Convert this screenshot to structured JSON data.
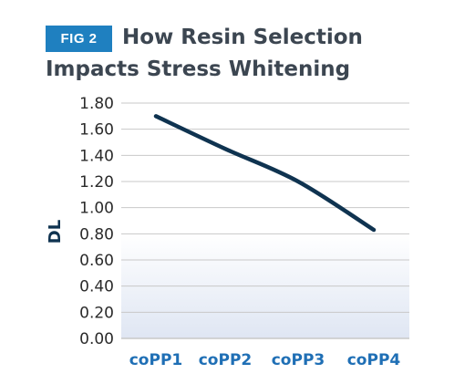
{
  "figure": {
    "badge": "FIG 2",
    "title_line_1": "How Resin Selection",
    "title_line_2": "Impacts Stress Whitening"
  },
  "colors": {
    "badge_bg": "#1f80c0",
    "line": "#0f3350",
    "category_label": "#1f6fb5",
    "gradient_top": "#ffffff",
    "gradient_bottom": "#dfe6f3",
    "grid": "#c8c8c8"
  },
  "chart_data": {
    "type": "line",
    "title": "How Resin Selection Impacts Stress Whitening",
    "xlabel": "",
    "ylabel": "DL",
    "categories": [
      "coPP1",
      "coPP2",
      "coPP3",
      "coPP4"
    ],
    "series": [
      {
        "values": [
          1.7,
          1.45,
          1.2,
          0.83
        ]
      }
    ],
    "ylim": [
      0,
      1.8
    ],
    "yticks": [
      "0.00",
      "0.20",
      "0.40",
      "0.60",
      "0.80",
      "1.00",
      "1.20",
      "1.40",
      "1.60",
      "1.80"
    ],
    "grid": true,
    "background": "gradient below 0.80"
  }
}
